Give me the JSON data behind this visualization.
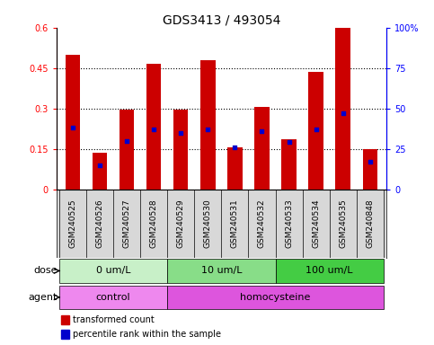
{
  "title": "GDS3413 / 493054",
  "samples": [
    "GSM240525",
    "GSM240526",
    "GSM240527",
    "GSM240528",
    "GSM240529",
    "GSM240530",
    "GSM240531",
    "GSM240532",
    "GSM240533",
    "GSM240534",
    "GSM240535",
    "GSM240848"
  ],
  "red_values": [
    0.5,
    0.135,
    0.295,
    0.465,
    0.295,
    0.48,
    0.155,
    0.305,
    0.185,
    0.435,
    0.6,
    0.148
  ],
  "blue_percentiles": [
    38,
    15,
    30,
    37,
    35,
    37,
    26,
    36,
    29,
    37,
    47,
    17
  ],
  "ylim_left": [
    0,
    0.6
  ],
  "ylim_right": [
    0,
    100
  ],
  "yticks_left": [
    0,
    0.15,
    0.3,
    0.45,
    0.6
  ],
  "yticks_right": [
    0,
    25,
    50,
    75,
    100
  ],
  "ytick_labels_left": [
    "0",
    "0.15",
    "0.3",
    "0.45",
    "0.6"
  ],
  "ytick_labels_right": [
    "0",
    "25",
    "50",
    "75",
    "100%"
  ],
  "dose_groups": [
    {
      "label": "0 um/L",
      "start": 0,
      "end": 4,
      "color": "#C8F0C8"
    },
    {
      "label": "10 um/L",
      "start": 4,
      "end": 8,
      "color": "#88DD88"
    },
    {
      "label": "100 um/L",
      "start": 8,
      "end": 12,
      "color": "#44CC44"
    }
  ],
  "agent_groups": [
    {
      "label": "control",
      "start": 0,
      "end": 4,
      "color": "#EE88EE"
    },
    {
      "label": "homocysteine",
      "start": 4,
      "end": 12,
      "color": "#DD55DD"
    }
  ],
  "dose_label": "dose",
  "agent_label": "agent",
  "legend_red": "transformed count",
  "legend_blue": "percentile rank within the sample",
  "bar_color": "#CC0000",
  "blue_color": "#0000CC",
  "title_fontsize": 10,
  "tick_fontsize": 7,
  "label_fontsize": 8,
  "sample_label_fontsize": 6.5,
  "bar_width": 0.55
}
